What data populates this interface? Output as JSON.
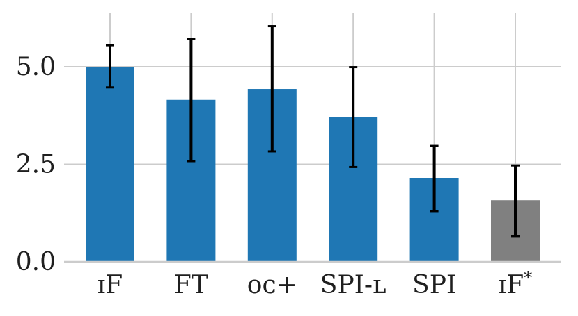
{
  "chart_data": {
    "type": "bar",
    "title": "",
    "xlabel": "",
    "ylabel": "",
    "categories": [
      "IF",
      "FT",
      "OC+",
      "SPI-L",
      "SPI",
      "IF*"
    ],
    "category_labels": [
      {
        "main": "ɪF",
        "sup": ""
      },
      {
        "main": "FT",
        "sup": ""
      },
      {
        "main": "ᴏᴄ+",
        "sup": ""
      },
      {
        "main": "SPI-ʟ",
        "sup": ""
      },
      {
        "main": "SPI",
        "sup": ""
      },
      {
        "main": "ɪF",
        "sup": "*"
      }
    ],
    "values": [
      5.0,
      4.15,
      4.43,
      3.71,
      2.14,
      1.58
    ],
    "error_low": [
      4.47,
      2.58,
      2.83,
      2.43,
      1.3,
      0.66
    ],
    "error_high": [
      5.55,
      5.71,
      6.04,
      4.99,
      2.97,
      2.47
    ],
    "bar_colors": [
      "#1f77b4",
      "#1f77b4",
      "#1f77b4",
      "#1f77b4",
      "#1f77b4",
      "#808080"
    ],
    "ylim": [
      0,
      6.3
    ],
    "yticks": [
      0.0,
      2.5,
      5.0
    ],
    "ytick_labels": [
      "0.0",
      "2.5",
      "5.0"
    ],
    "grid": true,
    "legend": "none"
  }
}
